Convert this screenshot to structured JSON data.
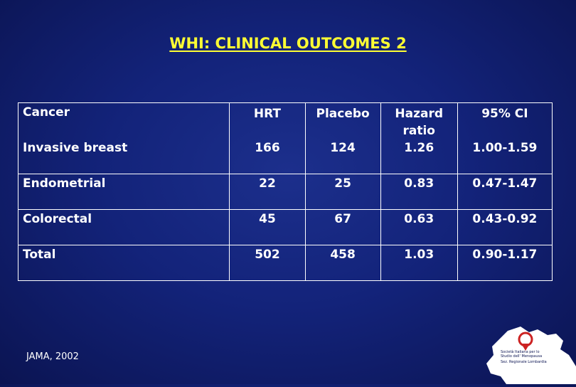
{
  "title": "WHI: CLINICAL OUTCOMES 2",
  "table": {
    "headers": {
      "cancer": "Cancer",
      "hrt": "HRT",
      "placebo": "Placebo",
      "hazard_ratio_line1": "Hazard",
      "hazard_ratio_line2": "ratio",
      "ci": "95% CI"
    },
    "rows": [
      {
        "label": "Invasive breast",
        "hrt": "166",
        "placebo": "124",
        "hr": "1.26",
        "ci": "1.00-1.59"
      },
      {
        "label": "Endometrial",
        "hrt": "22",
        "placebo": "25",
        "hr": "0.83",
        "ci": "0.47-1.47"
      },
      {
        "label": "Colorectal",
        "hrt": "45",
        "placebo": "67",
        "hr": "0.63",
        "ci": "0.43-0.92"
      },
      {
        "label": "Total",
        "hrt": "502",
        "placebo": "458",
        "hr": "1.03",
        "ci": "0.90-1.17"
      }
    ]
  },
  "footer": "JAMA, 2002",
  "logo": {
    "line1": "Società Italiana per lo",
    "line2": "Studio dell' Menopausa",
    "line3": "Sez. Regionale Lombardia"
  },
  "colors": {
    "background": "#13237a",
    "title": "#ffff33",
    "text": "#ffffff"
  }
}
